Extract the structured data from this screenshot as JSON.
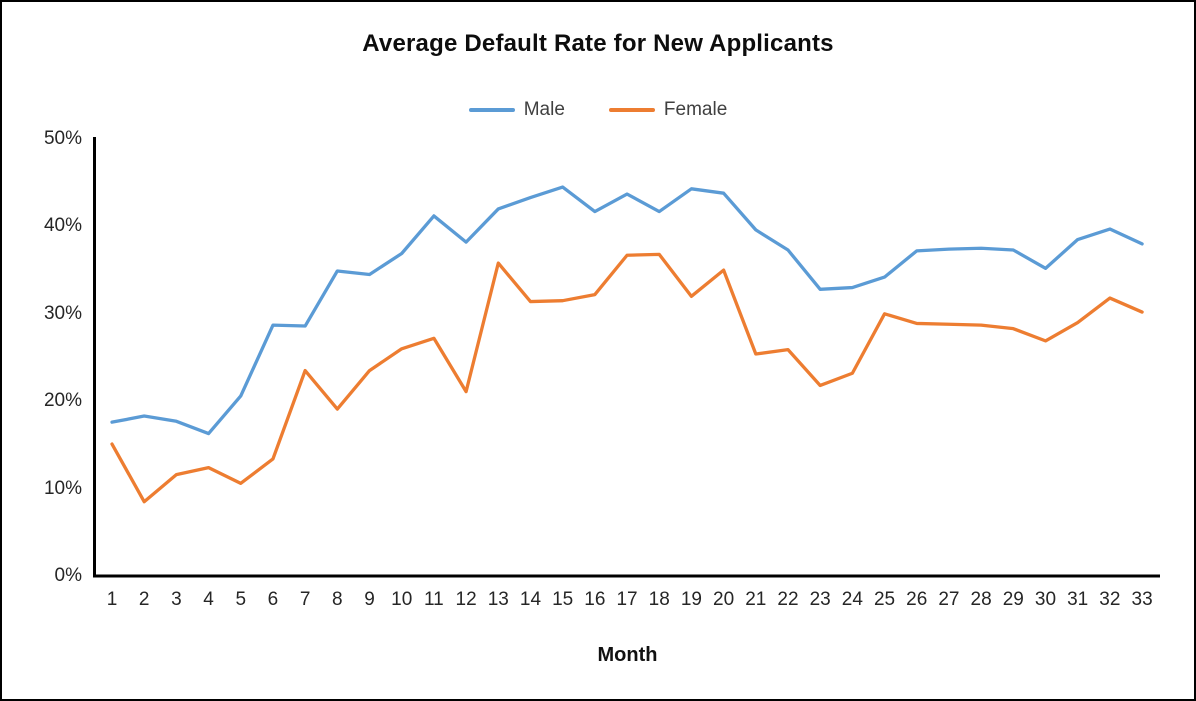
{
  "chart_data": {
    "type": "line",
    "title": "Average Default Rate for New Applicants",
    "xlabel": "Month",
    "ylabel": "",
    "x": [
      1,
      2,
      3,
      4,
      5,
      6,
      7,
      8,
      9,
      10,
      11,
      12,
      13,
      14,
      15,
      16,
      17,
      18,
      19,
      20,
      21,
      22,
      23,
      24,
      25,
      26,
      27,
      28,
      29,
      30,
      31,
      32,
      33
    ],
    "series": [
      {
        "name": "Male",
        "color": "#5B9BD5",
        "values": [
          17.6,
          18.3,
          17.7,
          16.3,
          20.6,
          28.7,
          28.6,
          34.9,
          34.5,
          36.9,
          41.2,
          38.2,
          42.0,
          43.3,
          44.5,
          41.7,
          43.7,
          41.7,
          44.3,
          43.8,
          39.6,
          37.3,
          32.8,
          33.0,
          34.2,
          37.2,
          37.4,
          37.5,
          37.3,
          35.2,
          38.5,
          39.7,
          38.0
        ]
      },
      {
        "name": "Female",
        "color": "#ED7D31",
        "values": [
          15.1,
          8.5,
          11.6,
          12.4,
          10.6,
          13.4,
          23.5,
          19.1,
          23.5,
          26.0,
          27.2,
          21.1,
          35.8,
          31.4,
          31.5,
          32.2,
          36.7,
          36.8,
          32.0,
          35.0,
          25.4,
          25.9,
          21.8,
          23.2,
          30.0,
          28.9,
          28.8,
          28.7,
          28.3,
          26.9,
          29.0,
          31.8,
          30.2
        ]
      }
    ],
    "ylim": [
      0,
      50
    ],
    "yticks": [
      {
        "value": 0,
        "label": "0%"
      },
      {
        "value": 10,
        "label": "10%"
      },
      {
        "value": 20,
        "label": "20%"
      },
      {
        "value": 30,
        "label": "30%"
      },
      {
        "value": 40,
        "label": "40%"
      },
      {
        "value": 50,
        "label": "50%"
      }
    ],
    "grid": false,
    "legend_position": "top-center",
    "axis_color": "#000000"
  }
}
